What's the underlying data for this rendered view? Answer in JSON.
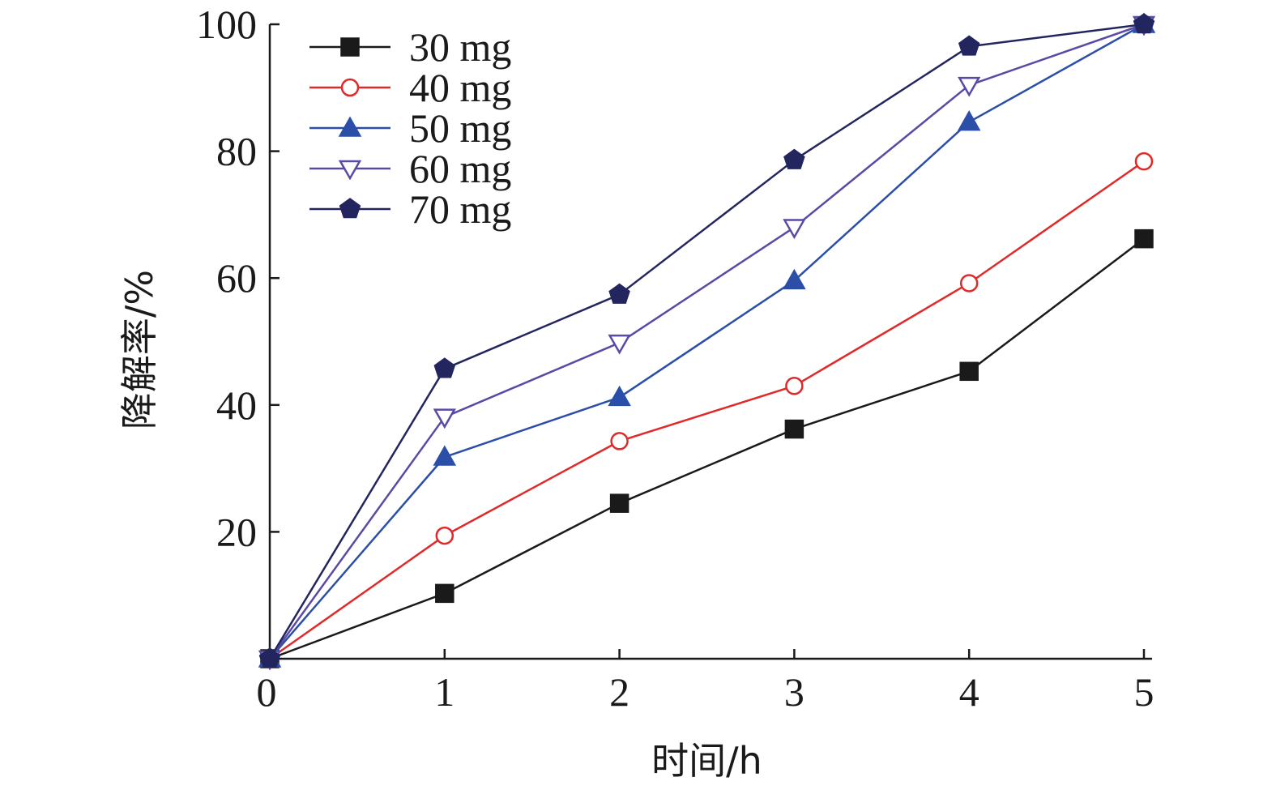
{
  "chart_data": {
    "type": "line",
    "title": "",
    "xlabel": "时间/h",
    "ylabel": "降解率/%",
    "x": [
      0,
      1,
      2,
      3,
      4,
      5
    ],
    "xlim": [
      0,
      5
    ],
    "ylim": [
      0,
      100
    ],
    "x_ticks": [
      "0",
      "1",
      "2",
      "3",
      "4",
      "5"
    ],
    "y_ticks": [
      "20",
      "40",
      "60",
      "80",
      "100"
    ],
    "grid": false,
    "legend_position": "top-left",
    "series": [
      {
        "name": "30 mg",
        "marker": "square-filled",
        "color": "#1a1a1a",
        "values": [
          0,
          10.3,
          24.5,
          36.2,
          45.3,
          66.2
        ]
      },
      {
        "name": "40 mg",
        "marker": "circle-open",
        "color": "#e02a2a",
        "values": [
          0,
          19.4,
          34.3,
          43.0,
          59.2,
          78.4
        ]
      },
      {
        "name": "50 mg",
        "marker": "triangle-up-filled",
        "color": "#2b4fa8",
        "values": [
          0,
          31.8,
          41.2,
          59.6,
          84.6,
          100
        ]
      },
      {
        "name": "60 mg",
        "marker": "triangle-down-open",
        "color": "#5a4aa6",
        "values": [
          0,
          38.1,
          49.8,
          68.0,
          90.4,
          100
        ]
      },
      {
        "name": "70 mg",
        "marker": "pentagon-filled",
        "color": "#23265e",
        "values": [
          0,
          45.7,
          57.4,
          78.6,
          96.5,
          100
        ]
      }
    ]
  }
}
